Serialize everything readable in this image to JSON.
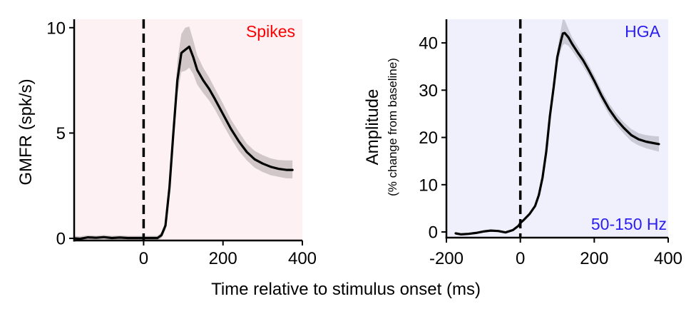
{
  "figure": {
    "shared_xlabel": "Time relative to stimulus onset (ms)"
  },
  "chart_data": [
    {
      "type": "line",
      "id": "spikes",
      "title": "",
      "annotation": "Spikes",
      "annotation_color": "#ff0000",
      "background_color": "#fdf1f3",
      "band_color": "#c9bfc1",
      "line_color": "#000000",
      "xlabel": "Time relative to stimulus onset (ms)",
      "ylabel": "GMFR (spk/s)",
      "xlim": [
        -175,
        400
      ],
      "ylim": [
        -0.1,
        10.4
      ],
      "xticks": [
        0,
        200,
        400
      ],
      "xtick_labels": [
        "0",
        "200",
        "400"
      ],
      "yticks": [
        0,
        5,
        10
      ],
      "ytick_labels": [
        "0",
        "5",
        "10"
      ],
      "vline": {
        "x": 0,
        "style": "dashed"
      },
      "grid": false,
      "series": [
        {
          "name": "mean",
          "x": [
            -175,
            -160,
            -140,
            -120,
            -100,
            -80,
            -60,
            -40,
            -20,
            0,
            20,
            35,
            45,
            55,
            65,
            75,
            85,
            95,
            105,
            115,
            125,
            135,
            150,
            165,
            180,
            200,
            220,
            240,
            260,
            280,
            300,
            320,
            340,
            360,
            375
          ],
          "y": [
            0.0,
            -0.02,
            0.05,
            0.03,
            0.06,
            0.02,
            0.04,
            0.02,
            0.02,
            0.02,
            0.02,
            0.02,
            0.15,
            0.6,
            2.4,
            5.0,
            7.5,
            8.8,
            8.95,
            9.1,
            8.6,
            8.0,
            7.5,
            7.1,
            6.6,
            5.9,
            5.2,
            4.6,
            4.1,
            3.75,
            3.55,
            3.4,
            3.3,
            3.25,
            3.25
          ],
          "upper": [
            0.12,
            0.1,
            0.15,
            0.13,
            0.16,
            0.12,
            0.14,
            0.12,
            0.12,
            0.12,
            0.12,
            0.12,
            0.3,
            0.8,
            2.8,
            5.5,
            8.4,
            9.7,
            10.0,
            10.05,
            9.4,
            8.7,
            8.1,
            7.65,
            7.1,
            6.4,
            5.65,
            5.05,
            4.5,
            4.15,
            3.95,
            3.8,
            3.72,
            3.7,
            3.7
          ],
          "lower": [
            -0.12,
            -0.14,
            -0.05,
            -0.07,
            -0.04,
            -0.08,
            -0.06,
            -0.08,
            -0.08,
            -0.08,
            -0.08,
            -0.08,
            0.0,
            0.4,
            2.0,
            4.5,
            6.8,
            7.9,
            7.95,
            8.1,
            7.8,
            7.3,
            6.9,
            6.55,
            6.1,
            5.4,
            4.75,
            4.15,
            3.7,
            3.35,
            3.15,
            3.0,
            2.92,
            2.85,
            2.85
          ]
        }
      ]
    },
    {
      "type": "line",
      "id": "hga",
      "title": "",
      "annotation": "HGA",
      "annotation2": "50-150 Hz",
      "annotation_color": "#2a1ef0",
      "background_color": "#f0f0fc",
      "band_color": "#c3c2cf",
      "line_color": "#000000",
      "xlabel": "Time relative to stimulus onset (ms)",
      "ylabel": "Amplitude",
      "ylabel_sub": "(% change from baseline)",
      "xlim": [
        -200,
        400
      ],
      "ylim": [
        -1.2,
        45
      ],
      "xticks": [
        -200,
        0,
        200,
        400
      ],
      "xtick_labels": [
        "-200",
        "0",
        "200",
        "400"
      ],
      "yticks": [
        0,
        10,
        20,
        30,
        40
      ],
      "ytick_labels": [
        "0",
        "10",
        "20",
        "30",
        "40"
      ],
      "vline": {
        "x": 0,
        "style": "dashed"
      },
      "grid": false,
      "series": [
        {
          "name": "mean",
          "x": [
            -175,
            -160,
            -140,
            -120,
            -100,
            -80,
            -60,
            -40,
            -20,
            -5,
            0,
            10,
            25,
            40,
            50,
            60,
            70,
            80,
            90,
            100,
            110,
            115,
            120,
            130,
            140,
            155,
            170,
            185,
            200,
            220,
            240,
            260,
            280,
            300,
            320,
            340,
            360,
            375
          ],
          "y": [
            -0.3,
            -0.5,
            -0.4,
            -0.2,
            0.1,
            0.3,
            0.2,
            -0.1,
            0.4,
            1.3,
            1.9,
            2.6,
            3.8,
            5.5,
            7.8,
            11.5,
            17.0,
            24.5,
            30.5,
            37.0,
            40.5,
            42.0,
            42.1,
            41.2,
            39.8,
            38.0,
            36.3,
            34.2,
            32.0,
            28.8,
            26.0,
            23.8,
            22.0,
            20.5,
            19.6,
            19.1,
            18.8,
            18.6
          ],
          "upper": [
            -0.3,
            -0.5,
            -0.4,
            -0.2,
            0.1,
            0.3,
            0.2,
            -0.1,
            0.4,
            1.3,
            1.9,
            2.6,
            3.8,
            5.5,
            7.8,
            11.5,
            17.2,
            25.0,
            31.5,
            38.5,
            43.0,
            45.0,
            44.8,
            43.0,
            41.2,
            39.3,
            37.5,
            35.4,
            33.2,
            30.0,
            27.2,
            25.0,
            23.2,
            21.8,
            20.9,
            20.5,
            20.3,
            20.2
          ],
          "lower": [
            -0.3,
            -0.5,
            -0.4,
            -0.2,
            0.1,
            0.3,
            0.2,
            -0.1,
            0.4,
            1.3,
            1.9,
            2.6,
            3.8,
            5.5,
            7.8,
            11.5,
            16.8,
            24.0,
            29.5,
            35.5,
            38.5,
            39.5,
            39.8,
            39.4,
            38.4,
            36.7,
            35.0,
            33.0,
            30.8,
            27.6,
            24.8,
            22.6,
            20.8,
            19.2,
            18.3,
            17.7,
            17.3,
            17.0
          ]
        }
      ]
    }
  ]
}
